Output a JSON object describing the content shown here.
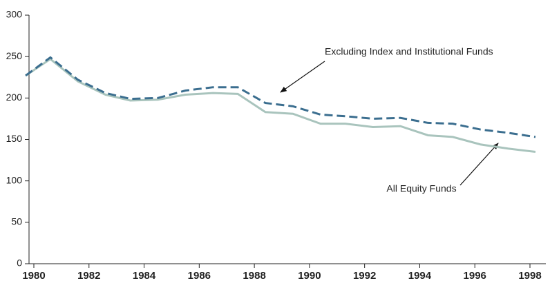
{
  "chart_data": {
    "type": "line",
    "x": [
      1979.7,
      1980.6,
      1981.6,
      1982.6,
      1983.5,
      1984.5,
      1985.5,
      1986.5,
      1987.4,
      1988.4,
      1989.4,
      1990.4,
      1991.3,
      1992.3,
      1993.3,
      1994.3,
      1995.2,
      1996.2,
      1997.2,
      1998.2
    ],
    "series": [
      {
        "name": "All Equity Funds",
        "color": "#a9c4bd",
        "dash": false,
        "values": [
          227,
          247,
          220,
          204,
          197,
          198,
          204,
          206,
          205,
          183,
          181,
          169,
          169,
          165,
          166,
          155,
          153,
          144,
          139,
          135
        ]
      },
      {
        "name": "Excluding Index and Institutional Funds",
        "color": "#3b6e8f",
        "dash": true,
        "values": [
          227,
          249,
          222,
          206,
          199,
          200,
          209,
          213,
          213,
          194,
          190,
          180,
          178,
          175,
          176,
          170,
          169,
          162,
          158,
          153
        ]
      }
    ],
    "xlim": [
      1980,
      1998
    ],
    "xticks": [
      1980,
      1982,
      1984,
      1986,
      1988,
      1990,
      1992,
      1994,
      1996,
      1998
    ],
    "ylim": [
      0,
      300
    ],
    "yticks": [
      0,
      50,
      100,
      150,
      200,
      250,
      300
    ],
    "grid": false
  }
}
